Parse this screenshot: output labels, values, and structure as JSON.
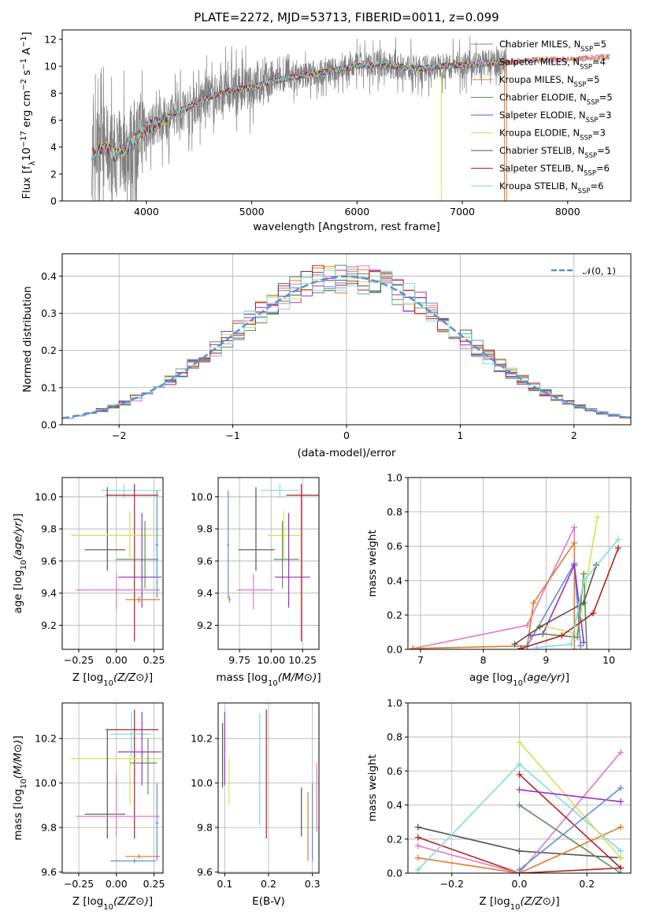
{
  "figure": {
    "title": "PLATE=2272, MJD=53713, FIBERID=0011, z=0.099"
  },
  "colors": {
    "chabrier_miles": "#5b8fd6",
    "salpeter_miles": "#e377c2",
    "kroupa_miles": "#e07b2a",
    "chabrier_elodie": "#5f8f5f",
    "salpeter_elodie": "#9b30c0",
    "kroupa_elodie": "#d4e157",
    "chabrier_stelib": "#555555",
    "salpeter_stelib": "#b22222",
    "kroupa_stelib": "#7fdbe3",
    "data": "#808080",
    "gaussian": "#5b8fd6"
  },
  "chart_data": [
    {
      "id": "spectrum",
      "type": "line",
      "xlabel": "wavelength [Angstrom, rest frame]",
      "ylabel": "Flux [f_λ10^-17 erg cm^-2 s^-1 A^-1]",
      "xlim": [
        3200,
        8600
      ],
      "ylim": [
        0,
        12.7
      ],
      "xticks": [
        "4000",
        "5000",
        "6000",
        "7000",
        "8000"
      ],
      "yticks": [
        "0",
        "2",
        "4",
        "6",
        "8",
        "10",
        "12"
      ],
      "legend_position": "right",
      "legend": [
        {
          "key": "chabrier_miles",
          "label": "Chabrier MILES, N",
          "sub": "SSP",
          "suffix": "=5"
        },
        {
          "key": "salpeter_miles",
          "label": "Salpeter MILES, N",
          "sub": "SSP",
          "suffix": "=4"
        },
        {
          "key": "kroupa_miles",
          "label": "Kroupa MILES, N",
          "sub": "SSP",
          "suffix": "=5"
        },
        {
          "key": "chabrier_elodie",
          "label": "Chabrier ELODIE, N",
          "sub": "SSP",
          "suffix": "=5"
        },
        {
          "key": "salpeter_elodie",
          "label": "Salpeter ELODIE, N",
          "sub": "SSP",
          "suffix": "=3"
        },
        {
          "key": "kroupa_elodie",
          "label": "Kroupa ELODIE, N",
          "sub": "SSP",
          "suffix": "=3"
        },
        {
          "key": "chabrier_stelib",
          "label": "Chabrier STELIB, N",
          "sub": "SSP",
          "suffix": "=5"
        },
        {
          "key": "salpeter_stelib",
          "label": "Salpeter STELIB, N",
          "sub": "SSP",
          "suffix": "=6"
        },
        {
          "key": "kroupa_stelib",
          "label": "Kroupa STELIB, N",
          "sub": "SSP",
          "suffix": "=6"
        }
      ],
      "continuum": {
        "x": [
          3480,
          3600,
          3700,
          3800,
          3900,
          4000,
          4100,
          4300,
          4500,
          4700,
          4860,
          5000,
          5200,
          5400,
          5600,
          5800,
          6000,
          6200,
          6400,
          6600,
          6800,
          7000,
          7200,
          7400,
          7600,
          7800,
          8000,
          8200,
          8400
        ],
        "y": [
          3.5,
          4.1,
          3.4,
          3.8,
          4.6,
          5.4,
          5.8,
          6.6,
          7.4,
          8.0,
          8.3,
          8.4,
          8.9,
          9.2,
          9.5,
          9.7,
          10.0,
          10.2,
          10.0,
          9.8,
          10.0,
          10.1,
          10.2,
          10.3,
          10.4,
          10.5,
          10.5,
          10.6,
          10.7
        ]
      },
      "data_range": [
        3480,
        7420
      ]
    },
    {
      "id": "residuals",
      "type": "histogram",
      "xlabel": "(data-model)/error",
      "ylabel": "Normed distribution",
      "xlim": [
        -2.5,
        2.5
      ],
      "ylim": [
        0,
        0.46
      ],
      "xticks": [
        "−2",
        "−1",
        "0",
        "1",
        "2"
      ],
      "yticks": [
        "0.0",
        "0.1",
        "0.2",
        "0.3",
        "0.4"
      ],
      "grid": true,
      "legend": "𝒩(0, 1)",
      "legend_position": "top-right",
      "bin_width": 0.1
    },
    {
      "id": "age_vs_Z",
      "type": "errorbar",
      "xlabel": "Z [log10(Z/Z⊙)]",
      "ylabel": "age  [log10(age/yr)]",
      "xlim": [
        -0.36,
        0.31
      ],
      "ylim": [
        9.05,
        10.12
      ],
      "xticks": [
        "−0.25",
        "0.00",
        "0.25"
      ],
      "yticks": [
        "9.2",
        "9.4",
        "9.6",
        "9.8",
        "10.0"
      ],
      "grid": true,
      "points": [
        {
          "key": "kroupa_stelib",
          "x": 0.05,
          "xerr": [
            0.15,
            0.25
          ],
          "y": 10.04,
          "yerr": [
            0.05,
            0.04
          ]
        },
        {
          "key": "salpeter_stelib",
          "x": 0.12,
          "xerr": [
            0.19,
            0.16
          ],
          "y": 10.01,
          "yerr": [
            0.91,
            0.07
          ]
        },
        {
          "key": "chabrier_stelib",
          "x": -0.06,
          "xerr": [
            0.15,
            0.12
          ],
          "y": 9.67,
          "yerr": [
            0.13,
            0.39
          ]
        },
        {
          "key": "kroupa_elodie",
          "x": 0.09,
          "xerr": [
            0.39,
            0.21
          ],
          "y": 9.76,
          "yerr": [
            0.14,
            0.15
          ]
        },
        {
          "key": "chabrier_elodie",
          "x": 0.19,
          "xerr": [
            0.19,
            0.09
          ],
          "y": 9.61,
          "yerr": [
            0.18,
            0.24
          ]
        },
        {
          "key": "salpeter_elodie",
          "x": 0.17,
          "xerr": [
            0.16,
            0.13
          ],
          "y": 9.5,
          "yerr": [
            0.19,
            0.4
          ]
        },
        {
          "key": "salpeter_miles",
          "x": 0.0,
          "xerr": [
            0.27,
            0.29
          ],
          "y": 9.42,
          "yerr": [
            0.12,
            0.1
          ]
        },
        {
          "key": "kroupa_miles",
          "x": 0.15,
          "xerr": [
            0.09,
            0.14
          ],
          "y": 9.36,
          "yerr": [
            0.02,
            0.02
          ]
        },
        {
          "key": "chabrier_miles",
          "x": 0.27,
          "xerr": [
            0.01,
            0.01
          ],
          "y": 9.7,
          "yerr": [
            0.33,
            0.34
          ]
        }
      ]
    },
    {
      "id": "age_vs_mass",
      "type": "errorbar",
      "xlabel": "mass [log10(M/M⊙)]",
      "ylabel": "",
      "xlim": [
        9.58,
        10.38
      ],
      "ylim": [
        9.05,
        10.12
      ],
      "xticks": [
        "9.75",
        "10.00",
        "10.25"
      ],
      "yticks": [
        "9.2",
        "9.4",
        "9.6",
        "9.8",
        "10.0"
      ],
      "grid": true,
      "points": [
        {
          "key": "kroupa_stelib",
          "x": 10.07,
          "xerr": [
            0.15,
            0.15
          ],
          "y": 10.04,
          "yerr": [
            0.05,
            0.04
          ]
        },
        {
          "key": "salpeter_stelib",
          "x": 10.24,
          "xerr": [
            0.12,
            0.14
          ],
          "y": 10.01,
          "yerr": [
            0.91,
            0.07
          ]
        },
        {
          "key": "chabrier_stelib",
          "x": 9.88,
          "xerr": [
            0.14,
            0.15
          ],
          "y": 9.67,
          "yerr": [
            0.13,
            0.39
          ]
        },
        {
          "key": "kroupa_elodie",
          "x": 10.1,
          "xerr": [
            0.13,
            0.13
          ],
          "y": 9.76,
          "yerr": [
            0.14,
            0.15
          ]
        },
        {
          "key": "chabrier_elodie",
          "x": 10.09,
          "xerr": [
            0.07,
            0.13
          ],
          "y": 9.61,
          "yerr": [
            0.18,
            0.24
          ]
        },
        {
          "key": "salpeter_elodie",
          "x": 10.14,
          "xerr": [
            0.11,
            0.17
          ],
          "y": 9.5,
          "yerr": [
            0.19,
            0.4
          ]
        },
        {
          "key": "salpeter_miles",
          "x": 9.86,
          "xerr": [
            0.13,
            0.16
          ],
          "y": 9.42,
          "yerr": [
            0.12,
            0.1
          ]
        },
        {
          "key": "kroupa_miles",
          "x": 9.67,
          "xerr": [
            0.01,
            0.01
          ],
          "y": 9.36,
          "yerr": [
            0.02,
            0.02
          ]
        },
        {
          "key": "chabrier_miles",
          "x": 9.66,
          "xerr": [
            0.01,
            0.01
          ],
          "y": 9.7,
          "yerr": [
            0.33,
            0.34
          ]
        }
      ]
    },
    {
      "id": "massweight_vs_age",
      "type": "line",
      "xlabel": "age  [log10(age/yr)]",
      "ylabel": "mass weight",
      "xlim": [
        6.8,
        10.35
      ],
      "ylim": [
        0,
        1.0
      ],
      "xticks": [
        "7",
        "8",
        "9",
        "10"
      ],
      "yticks": [
        "0.0",
        "0.2",
        "0.4",
        "0.6",
        "0.8",
        "1.0"
      ],
      "grid": true,
      "series": [
        {
          "key": "salpeter_miles",
          "x": [
            6.88,
            8.7,
            9.45,
            9.45
          ],
          "y": [
            0.005,
            0.14,
            0.71,
            0.0
          ]
        },
        {
          "key": "kroupa_miles",
          "x": [
            6.88,
            8.7,
            8.8,
            9.45,
            9.45
          ],
          "y": [
            0.005,
            0.02,
            0.27,
            0.62,
            0.0
          ]
        },
        {
          "key": "chabrier_miles",
          "x": [
            8.7,
            9.45,
            9.55
          ],
          "y": [
            0.02,
            0.5,
            0.02
          ]
        },
        {
          "key": "salpeter_elodie",
          "x": [
            8.75,
            8.95,
            9.45,
            9.6
          ],
          "y": [
            0.08,
            0.09,
            0.49,
            0.04
          ]
        },
        {
          "key": "kroupa_elodie",
          "x": [
            8.9,
            9.5,
            9.82
          ],
          "y": [
            0.14,
            0.09,
            0.77
          ]
        },
        {
          "key": "chabrier_elodie",
          "x": [
            8.95,
            9.5,
            9.6,
            9.65
          ],
          "y": [
            0.09,
            0.07,
            0.44,
            0.0
          ]
        },
        {
          "key": "chabrier_stelib",
          "x": [
            8.5,
            8.9,
            9.6,
            9.8
          ],
          "y": [
            0.03,
            0.13,
            0.27,
            0.49
          ]
        },
        {
          "key": "salpeter_stelib",
          "x": [
            8.6,
            9.25,
            9.75,
            10.15
          ],
          "y": [
            0.005,
            0.08,
            0.21,
            0.59
          ]
        },
        {
          "key": "kroupa_stelib",
          "x": [
            8.85,
            9.4,
            9.6,
            10.15
          ],
          "y": [
            0.01,
            0.03,
            0.4,
            0.64
          ]
        }
      ]
    },
    {
      "id": "mass_vs_Z",
      "type": "errorbar",
      "xlabel": "Z [log10(Z/Z⊙)]",
      "ylabel": "mass [log10(M/M⊙)]",
      "xlim": [
        -0.36,
        0.31
      ],
      "ylim": [
        9.595,
        10.36
      ],
      "xticks": [
        "−0.25",
        "0.00",
        "0.25"
      ],
      "yticks": [
        "9.6",
        "9.8",
        "10.0",
        "10.2"
      ],
      "grid": true,
      "points": [
        {
          "key": "salpeter_stelib",
          "x": 0.12,
          "xerr": [
            0.19,
            0.16
          ],
          "y": 10.24,
          "yerr": [
            0.49,
            0.09
          ]
        },
        {
          "key": "kroupa_stelib",
          "x": 0.1,
          "xerr": [
            0.14,
            0.13
          ],
          "y": 10.22,
          "yerr": [
            0.1,
            0.1
          ]
        },
        {
          "key": "salpeter_elodie",
          "x": 0.17,
          "xerr": [
            0.16,
            0.13
          ],
          "y": 10.14,
          "yerr": [
            0.15,
            0.18
          ]
        },
        {
          "key": "kroupa_elodie",
          "x": 0.09,
          "xerr": [
            0.39,
            0.21
          ],
          "y": 10.11,
          "yerr": [
            0.21,
            0.02
          ]
        },
        {
          "key": "chabrier_elodie",
          "x": 0.21,
          "xerr": [
            0.12,
            0.06
          ],
          "y": 10.09,
          "yerr": [
            0.14,
            0.11
          ]
        },
        {
          "key": "chabrier_stelib",
          "x": -0.06,
          "xerr": [
            0.15,
            0.12
          ],
          "y": 9.86,
          "yerr": [
            0.11,
            0.38
          ]
        },
        {
          "key": "salpeter_miles",
          "x": 0.0,
          "xerr": [
            0.27,
            0.29
          ],
          "y": 9.85,
          "yerr": [
            0.09,
            0.19
          ]
        },
        {
          "key": "kroupa_miles",
          "x": 0.15,
          "xerr": [
            0.09,
            0.14
          ],
          "y": 9.67,
          "yerr": [
            0.01,
            0.01
          ]
        },
        {
          "key": "chabrier_miles",
          "x": 0.12,
          "xerr": [
            0.16,
            0.14
          ],
          "y": 9.65,
          "yerr": [
            0.01,
            0.01
          ]
        },
        {
          "key": "chabrier_miles",
          "x": 0.27,
          "xerr": [
            0.01,
            0.01
          ],
          "y": 9.82,
          "yerr": [
            0.17,
            0.18
          ]
        }
      ]
    },
    {
      "id": "mass_vs_ebv",
      "type": "errorbar",
      "xlabel": "E(B-V)",
      "ylabel": "",
      "xlim": [
        0.085,
        0.315
      ],
      "ylim": [
        9.595,
        10.36
      ],
      "xticks": [
        "0.1",
        "0.2",
        "0.3"
      ],
      "yticks": [
        "9.6",
        "9.8",
        "10.0",
        "10.2"
      ],
      "grid": true,
      "points": [
        {
          "key": "salpeter_elodie",
          "x": 0.1,
          "xerr": [
            0,
            0
          ],
          "y": 10.14,
          "yerr": [
            0.15,
            0.18
          ]
        },
        {
          "key": "chabrier_stelib",
          "x": 0.095,
          "xerr": [
            0,
            0
          ],
          "y": 10.1,
          "yerr": [
            0.12,
            0.17
          ]
        },
        {
          "key": "kroupa_elodie",
          "x": 0.11,
          "xerr": [
            0,
            0
          ],
          "y": 10.0,
          "yerr": [
            0.1,
            0.11
          ]
        },
        {
          "key": "kroupa_stelib",
          "x": 0.18,
          "xerr": [
            0,
            0
          ],
          "y": 10.06,
          "yerr": [
            0.25,
            0.25
          ]
        },
        {
          "key": "salpeter_stelib",
          "x": 0.195,
          "xerr": [
            0,
            0
          ],
          "y": 10.04,
          "yerr": [
            0.29,
            0.29
          ]
        },
        {
          "key": "chabrier_stelib",
          "x": 0.275,
          "xerr": [
            0,
            0
          ],
          "y": 9.87,
          "yerr": [
            0.11,
            0.11
          ]
        },
        {
          "key": "kroupa_miles",
          "x": 0.29,
          "xerr": [
            0,
            0
          ],
          "y": 9.8,
          "yerr": [
            0.15,
            0.16
          ]
        },
        {
          "key": "chabrier_miles",
          "x": 0.3,
          "xerr": [
            0,
            0
          ],
          "y": 9.82,
          "yerr": [
            0.17,
            0.18
          ]
        },
        {
          "key": "salpeter_miles",
          "x": 0.31,
          "xerr": [
            0,
            0
          ],
          "y": 9.86,
          "yerr": [
            0.08,
            0.23
          ]
        }
      ]
    },
    {
      "id": "massweight_vs_Z",
      "type": "line",
      "xlabel": "Z [log10(Z/Z⊙)]",
      "ylabel": "mass weight",
      "xlim": [
        -0.33,
        0.33
      ],
      "ylim": [
        0,
        1.0
      ],
      "xticks": [
        "−0.2",
        "0.0",
        "0.2"
      ],
      "yticks": [
        "0.0",
        "0.2",
        "0.4",
        "0.6",
        "0.8",
        "1.0"
      ],
      "grid": true,
      "series": [
        {
          "key": "chabrier_stelib",
          "x": [
            -0.3,
            0.0,
            0.3
          ],
          "y": [
            0.27,
            0.13,
            0.09
          ]
        },
        {
          "key": "salpeter_stelib",
          "x": [
            -0.3,
            0.0,
            0.3
          ],
          "y": [
            0.21,
            0.0,
            0.03
          ]
        },
        {
          "key": "salpeter_miles",
          "x": [
            -0.3,
            0.0,
            0.3
          ],
          "y": [
            0.16,
            0.0,
            0.71
          ]
        },
        {
          "key": "kroupa_miles",
          "x": [
            -0.3,
            0.0,
            0.3
          ],
          "y": [
            0.09,
            0.0,
            0.27
          ]
        },
        {
          "key": "kroupa_stelib",
          "x": [
            -0.3,
            0.0,
            0.3
          ],
          "y": [
            0.02,
            0.64,
            0.13
          ]
        },
        {
          "key": "kroupa_elodie",
          "x": [
            0.0,
            0.3
          ],
          "y": [
            0.77,
            0.09
          ]
        },
        {
          "key": "salpeter_stelib",
          "x": [
            0.0,
            0.3
          ],
          "y": [
            0.58,
            0.03
          ]
        },
        {
          "key": "salpeter_elodie",
          "x": [
            0.0,
            0.3
          ],
          "y": [
            0.49,
            0.42
          ]
        },
        {
          "key": "chabrier_elodie",
          "x": [
            0.0,
            0.3
          ],
          "y": [
            0.4,
            0.0
          ]
        },
        {
          "key": "chabrier_miles",
          "x": [
            0.0,
            0.3
          ],
          "y": [
            0.02,
            0.5
          ]
        }
      ]
    }
  ]
}
